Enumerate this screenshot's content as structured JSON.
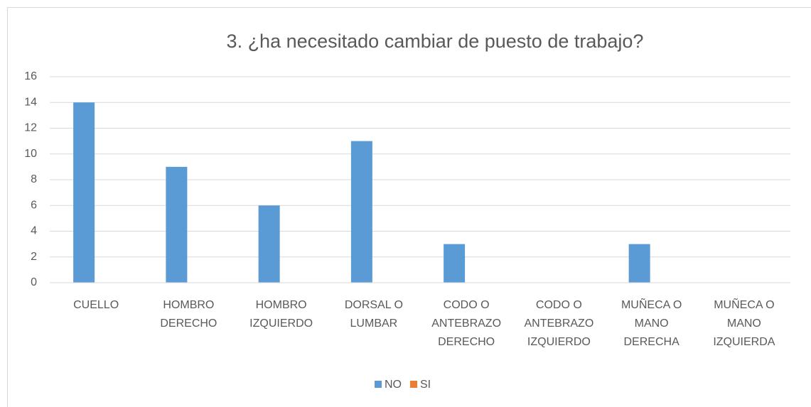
{
  "chart_data": {
    "type": "bar",
    "title": "3. ¿ha necesitado cambiar de puesto de trabajo?",
    "categories": [
      "CUELLO",
      "HOMBRO DERECHO",
      "HOMBRO IZQUIERDO",
      "DORSAL O LUMBAR",
      "CODO O ANTEBRAZO DERECHO",
      "CODO O ANTEBRAZO IZQUIERDO",
      "MUÑECA O MANO DERECHA",
      "MUÑECA O MANO IZQUIERDA"
    ],
    "series": [
      {
        "name": "NO",
        "color": "#5b9bd5",
        "values": [
          14,
          9,
          6,
          11,
          3,
          0,
          3,
          0
        ]
      },
      {
        "name": "SI",
        "color": "#ed7d31",
        "values": [
          0,
          0,
          0,
          0,
          0,
          0,
          0,
          0
        ]
      }
    ],
    "ylim": [
      0,
      16
    ],
    "yticks": [
      0,
      2,
      4,
      6,
      8,
      10,
      12,
      14,
      16
    ],
    "grid": true,
    "legend": "bottom"
  }
}
